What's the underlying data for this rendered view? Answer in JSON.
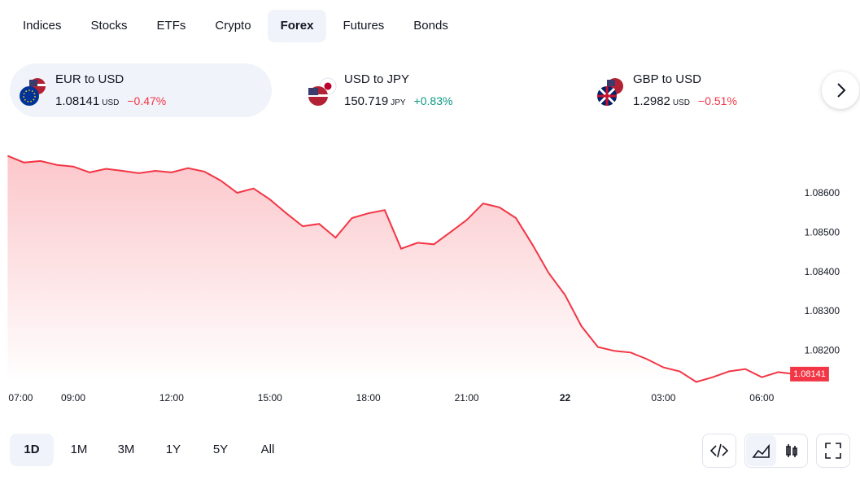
{
  "tabs": [
    "Indices",
    "Stocks",
    "ETFs",
    "Crypto",
    "Forex",
    "Futures",
    "Bonds"
  ],
  "active_tab": "Forex",
  "tickers": [
    {
      "name": "EUR to USD",
      "price": "1.08141",
      "unit": "USD",
      "change": "−0.47%",
      "direction": "down"
    },
    {
      "name": "USD to JPY",
      "price": "150.719",
      "unit": "JPY",
      "change": "+0.83%",
      "direction": "up"
    },
    {
      "name": "GBP to USD",
      "price": "1.2982",
      "unit": "USD",
      "change": "−0.51%",
      "direction": "down"
    }
  ],
  "chart_data": {
    "type": "area",
    "color": "#f23645",
    "x": [
      7,
      7.5,
      8,
      8.5,
      9,
      9.5,
      10,
      10.5,
      11,
      11.5,
      12,
      12.5,
      13,
      13.5,
      14,
      14.5,
      15,
      15.5,
      16,
      16.5,
      17,
      17.5,
      18,
      18.5,
      19,
      19.5,
      20,
      20.5,
      21,
      21.5,
      22,
      22.5,
      23,
      23.5,
      24,
      24.5,
      25,
      25.5,
      26,
      26.5,
      27,
      27.5,
      28,
      28.5,
      29,
      29.5,
      30,
      30.5,
      31
    ],
    "values": [
      1.08696,
      1.08679,
      1.08683,
      1.08673,
      1.08669,
      1.08654,
      1.08663,
      1.08658,
      1.08652,
      1.08658,
      1.08654,
      1.08665,
      1.08656,
      1.08633,
      1.08602,
      1.08613,
      1.08585,
      1.0855,
      1.08517,
      1.08523,
      1.08488,
      1.08538,
      1.0855,
      1.08558,
      1.0846,
      1.08475,
      1.08471,
      1.08502,
      1.08533,
      1.08575,
      1.08565,
      1.08538,
      1.08471,
      1.08398,
      1.08342,
      1.08263,
      1.0821,
      1.082,
      1.08196,
      1.08179,
      1.08158,
      1.08148,
      1.08121,
      1.08133,
      1.08148,
      1.08154,
      1.08133,
      1.08146,
      1.08141
    ],
    "current_price": "1.08141",
    "xlim": [
      7,
      31
    ],
    "xticks": [
      {
        "value": 7,
        "label": "07:00"
      },
      {
        "value": 9,
        "label": "09:00"
      },
      {
        "value": 12,
        "label": "12:00"
      },
      {
        "value": 15,
        "label": "15:00"
      },
      {
        "value": 18,
        "label": "18:00"
      },
      {
        "value": 21,
        "label": "21:00"
      },
      {
        "value": 24,
        "label": "22"
      },
      {
        "value": 27,
        "label": "03:00"
      },
      {
        "value": 30,
        "label": "06:00"
      }
    ],
    "ylim": [
      1.0812,
      1.0872
    ],
    "yticks": [
      {
        "value": 1.082,
        "label": "1.08200"
      },
      {
        "value": 1.083,
        "label": "1.08300"
      },
      {
        "value": 1.084,
        "label": "1.08400"
      },
      {
        "value": 1.085,
        "label": "1.08500"
      },
      {
        "value": 1.086,
        "label": "1.08600"
      }
    ]
  },
  "ranges": [
    "1D",
    "1M",
    "3M",
    "1Y",
    "5Y",
    "All"
  ],
  "active_range": "1D"
}
